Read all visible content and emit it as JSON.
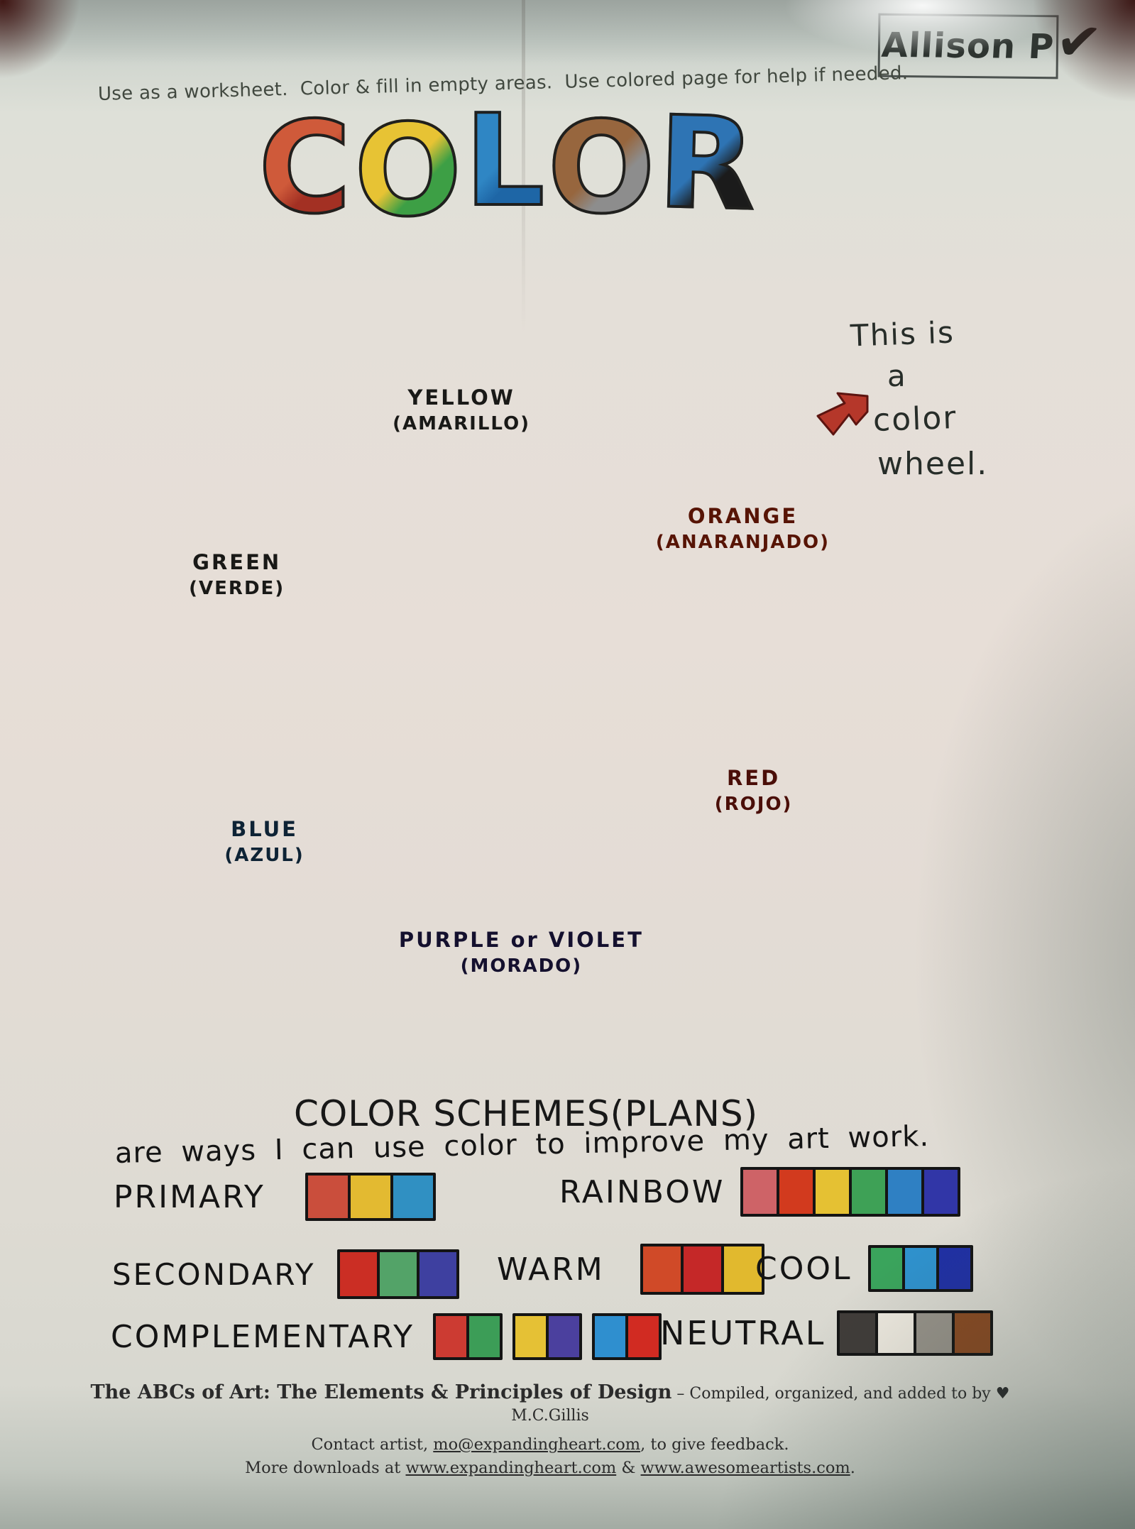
{
  "page": {
    "student_name": "Allison P",
    "checkmark": "✔"
  },
  "instructions": "Use as a worksheet.  Color & fill in empty areas.  Use colored page for help if needed.",
  "title": {
    "word": "COLOR",
    "letters": [
      {
        "char": "C",
        "colors": [
          "#cf5a3a",
          "#a33023"
        ]
      },
      {
        "char": "O",
        "colors": [
          "#e7c334",
          "#3d9f45"
        ]
      },
      {
        "char": "L",
        "colors": [
          "#2f86c4",
          "#1e66a6"
        ]
      },
      {
        "char": "O",
        "colors": [
          "#97663e",
          "#8d8d8d"
        ]
      },
      {
        "char": "R",
        "colors": [
          "#2e74b4",
          "#1b1b1b"
        ]
      }
    ]
  },
  "wheel": {
    "annotation": {
      "line1": "This is",
      "line2": "a",
      "line3": "color",
      "line4": "wheel."
    },
    "segments": [
      {
        "name": "YELLOW",
        "spanish": "(AMARILLO)",
        "color": "#ecc354"
      },
      {
        "name": "ORANGE",
        "spanish": "(ANARANJADO)",
        "color": "#cb4a1f"
      },
      {
        "name": "RED",
        "spanish": "(ROJO)",
        "color": "#c23b31"
      },
      {
        "name": "PURPLE or VIOLET",
        "spanish": "(MORADO)",
        "color": "#5d55a7"
      },
      {
        "name": "BLUE",
        "spanish": "(AZUL)",
        "color": "#2f96c7"
      },
      {
        "name": "GREEN",
        "spanish": "(VERDE)",
        "color": "#3f9a62"
      }
    ],
    "inner_primary": {
      "yellow": "#edc55e",
      "red": "#c23a32",
      "blue": "#3a95c3"
    }
  },
  "schemes": {
    "heading": "COLOR SCHEMES(PLANS)",
    "subheading": "are ways I can use color to improve my art work.",
    "items": [
      {
        "label": "PRIMARY",
        "groups": [
          [
            "#ca4e3c",
            "#e3ba31",
            "#3090c2"
          ]
        ]
      },
      {
        "label": "RAINBOW",
        "groups": [
          [
            "#ce6367",
            "#d23a1e",
            "#e5c133",
            "#3ea156",
            "#2f80c3",
            "#3136a7"
          ]
        ]
      },
      {
        "label": "SECONDARY",
        "groups": [
          [
            "#cb2e24",
            "#53a368",
            "#3e40a0"
          ]
        ]
      },
      {
        "label": "WARM",
        "groups": [
          [
            "#d04a28",
            "#c52828",
            "#e1b92e"
          ]
        ]
      },
      {
        "label": "COOL",
        "groups": [
          [
            "#3aa45c",
            "#2f92ce",
            "#2030a5"
          ]
        ]
      },
      {
        "label": "COMPLEMENTARY",
        "groups": [
          [
            "#cc3b32",
            "#3c9d57"
          ],
          [
            "#e5c135",
            "#4b409e"
          ],
          [
            "#2f8fcf",
            "#d12b22"
          ]
        ]
      },
      {
        "label": "NEUTRAL",
        "groups": [
          [
            "#403c39",
            "#efeae0",
            "#98938a",
            "#8a4a22"
          ]
        ]
      }
    ]
  },
  "footer": {
    "line1_title": "The ABCs of Art: The Elements & Principles of Design",
    "line1_rest": " – Compiled, organized, and added to by ♥ M.C.Gillis",
    "line2_pre": "Contact artist, ",
    "line2_link": "mo@expandingheart.com",
    "line2_post": ", to give feedback.",
    "line3_pre": "More downloads at ",
    "line3_link1": "www.expandingheart.com",
    "line3_mid": " & ",
    "line3_link2": "www.awesomeartists.com",
    "line3_post": "."
  }
}
